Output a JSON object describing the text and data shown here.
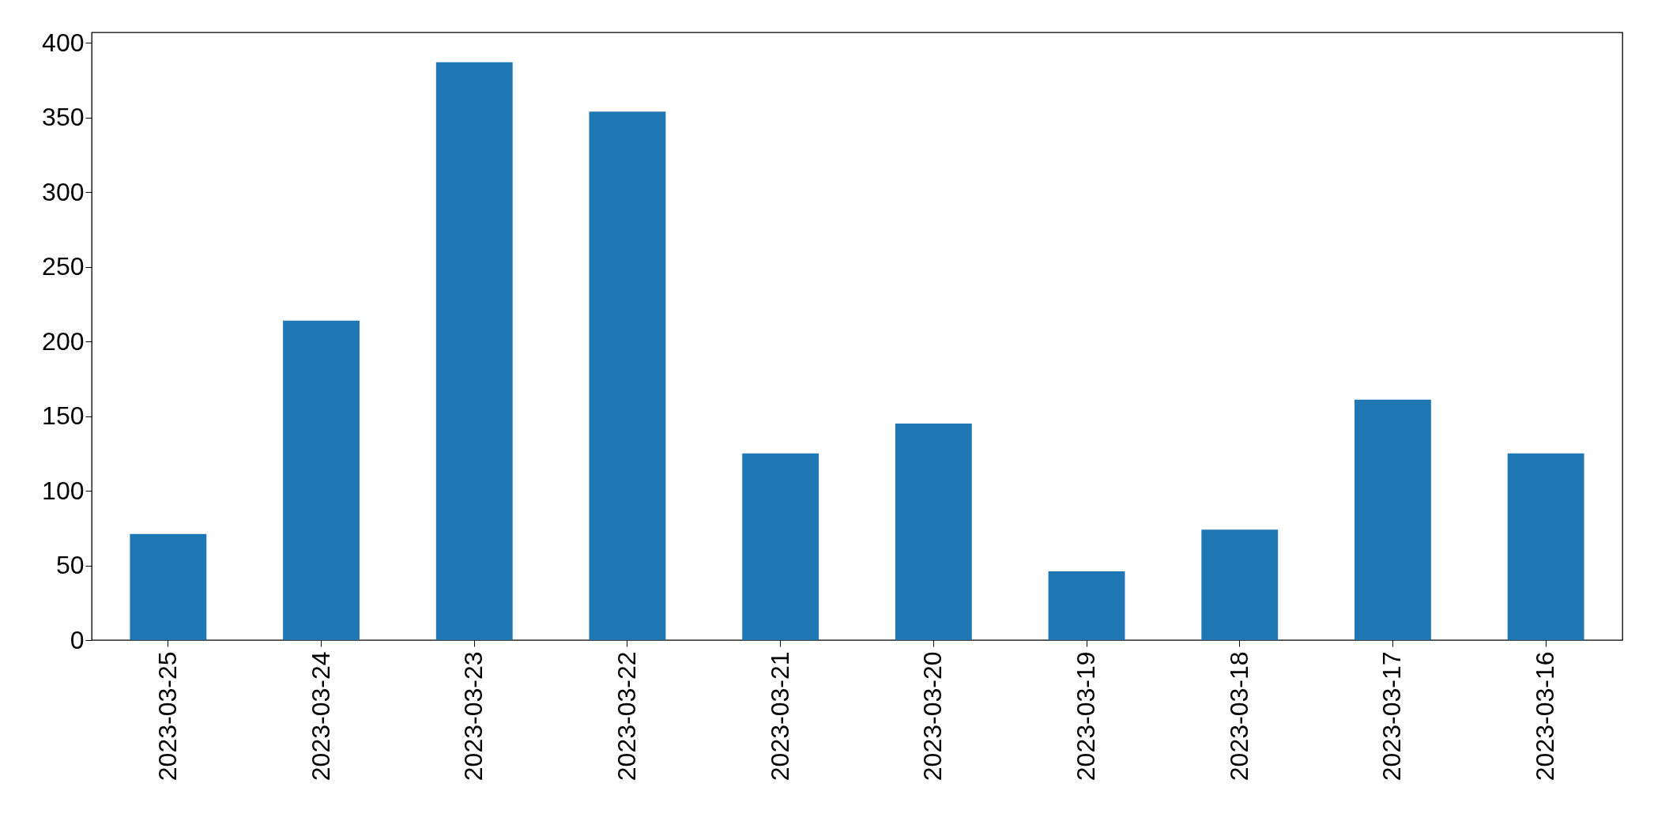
{
  "chart_data": {
    "type": "bar",
    "categories": [
      "2023-03-25",
      "2023-03-24",
      "2023-03-23",
      "2023-03-22",
      "2023-03-21",
      "2023-03-20",
      "2023-03-19",
      "2023-03-18",
      "2023-03-17",
      "2023-03-16"
    ],
    "values": [
      71,
      214,
      387,
      354,
      125,
      145,
      46,
      74,
      161,
      125
    ],
    "color": "#1f77b4",
    "ylim": [
      0,
      407
    ],
    "yticks": [
      0,
      50,
      100,
      150,
      200,
      250,
      300,
      350,
      400
    ],
    "grid": false
  }
}
